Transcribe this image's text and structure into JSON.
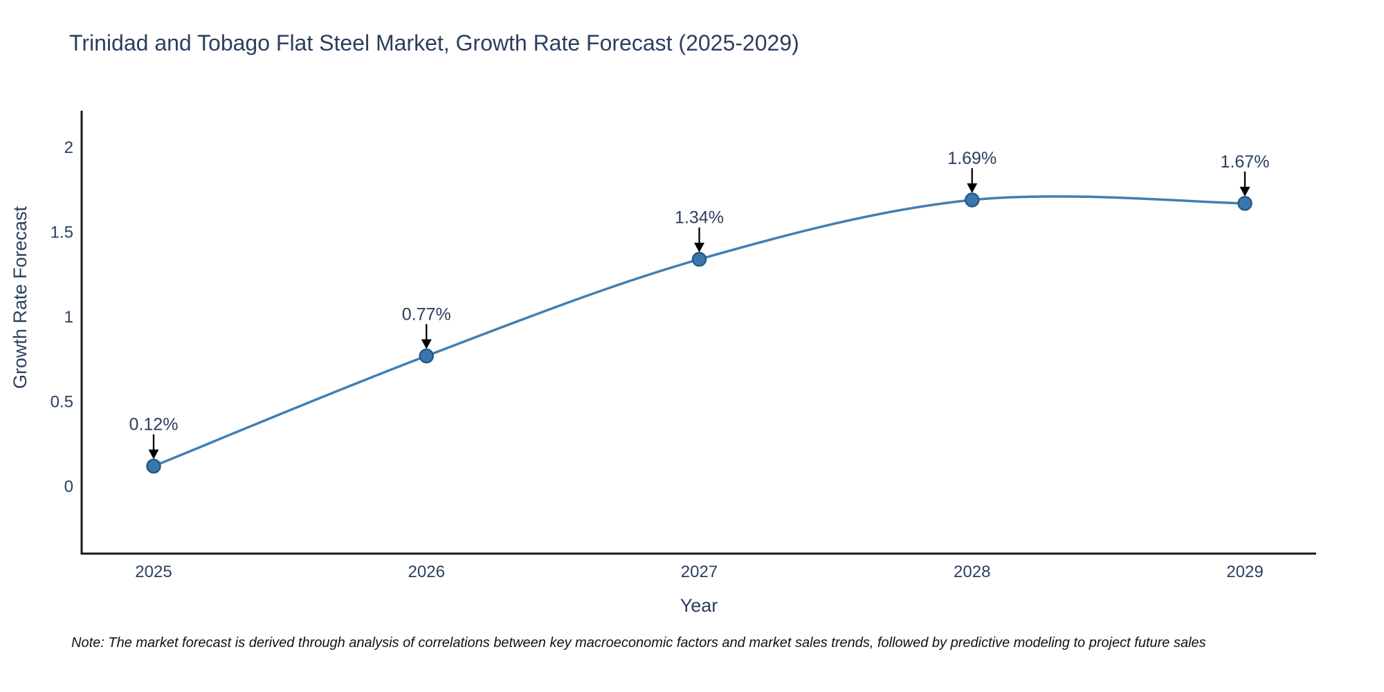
{
  "chart_data": {
    "type": "line",
    "title": "Trinidad and Tobago Flat Steel Market, Growth Rate Forecast (2025-2029)",
    "xlabel": "Year",
    "ylabel": "Growth Rate Forecast",
    "x": [
      2025,
      2026,
      2027,
      2028,
      2029
    ],
    "values": [
      0.12,
      0.77,
      1.34,
      1.69,
      1.67
    ],
    "point_labels": [
      "0.12%",
      "0.77%",
      "1.34%",
      "1.69%",
      "1.67%"
    ],
    "x_tick_labels": [
      "2025",
      "2026",
      "2027",
      "2028",
      "2029"
    ],
    "y_ticks": [
      0,
      0.5,
      1,
      1.5,
      2
    ],
    "y_tick_labels": [
      "0",
      "0.5",
      "1",
      "1.5",
      "2"
    ],
    "ylim": [
      -0.4,
      2.22
    ],
    "grid": false,
    "legend_position": "none",
    "line_style": "spline",
    "colors": {
      "line": "#3f7fb5",
      "marker_fill": "#3a77ae",
      "marker_edge": "#265a88",
      "text": "#2a3f5f",
      "axis": "#161616",
      "annotation_arrow": "#000000"
    },
    "note": "Note: The market forecast is derived through analysis of correlations between key macroeconomic factors and market sales trends, followed by predictive modeling to project future sales"
  }
}
